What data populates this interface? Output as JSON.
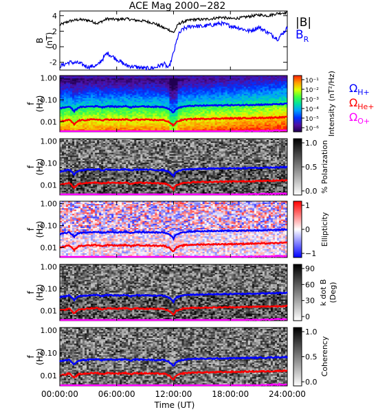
{
  "figure": {
    "title": "ACE Mag 2000−282",
    "xlabel": "Time (UT)",
    "xticks": [
      "00:00:00",
      "06:00:00",
      "12:00:00",
      "18:00:00",
      "24:00:00"
    ]
  },
  "colors": {
    "B_total": "#000000",
    "B_R": "#0000ff",
    "H_plus": "#0000ff",
    "He_plus": "#ff0000",
    "O_plus": "#ff00ff"
  },
  "legend": {
    "top": [
      {
        "label": "|B|",
        "color": "#000000"
      },
      {
        "label": "B",
        "sub": "R",
        "color": "#0000ff"
      }
    ],
    "gyro": [
      {
        "label": "Ω",
        "sub": "H+",
        "color": "#0000ff"
      },
      {
        "label": "Ω",
        "sub": "He+",
        "color": "#ff0000"
      },
      {
        "label": "Ω",
        "sub": "O+",
        "color": "#ff00ff"
      }
    ]
  },
  "freq_axis": {
    "ylabel": "f",
    "yunit": "(Hz)",
    "ticks": [
      "1.00",
      "0.10",
      "0.01"
    ]
  },
  "chart_data": [
    {
      "type": "line",
      "panel": "B-field",
      "ylabel": "B",
      "yunit": "(nT)",
      "ylim": [
        -3,
        4.6
      ],
      "yticks": [
        -2,
        0,
        2,
        4
      ],
      "x": [
        0,
        1,
        2,
        3,
        4,
        5,
        6,
        7,
        8,
        9,
        10,
        11,
        11.5,
        12,
        12.5,
        13,
        14,
        15,
        16,
        17,
        18,
        19,
        20,
        21,
        22,
        23,
        24
      ],
      "series": [
        {
          "name": "|B|",
          "values": [
            2.8,
            3.3,
            3.5,
            3.4,
            3.0,
            3.6,
            3.5,
            3.6,
            3.4,
            3.3,
            3.0,
            2.4,
            2.2,
            1.8,
            2.9,
            3.2,
            3.5,
            3.5,
            3.6,
            3.8,
            3.6,
            3.7,
            3.9,
            4.1,
            4.0,
            4.3,
            4.4
          ]
        },
        {
          "name": "B_R",
          "values": [
            -2.5,
            -2.0,
            -2.1,
            -2.6,
            -2.4,
            -0.8,
            -1.6,
            -2.4,
            -2.6,
            -2.8,
            -2.7,
            -2.2,
            -2.8,
            -0.8,
            1.5,
            2.3,
            2.7,
            2.6,
            2.8,
            3.0,
            2.7,
            2.4,
            2.0,
            2.5,
            1.8,
            1.0,
            2.4
          ]
        }
      ]
    },
    {
      "type": "heatmap",
      "panel": "Intensity",
      "colorbar_label": "Intensity (nT²/Hz)",
      "colorbar_ticks": [
        "10⁻¹",
        "10⁻²",
        "10⁻³",
        "10⁻⁴",
        "10⁻⁵",
        "10⁻⁶"
      ],
      "colormap": "rainbow"
    },
    {
      "type": "heatmap",
      "panel": "Polarization",
      "colorbar_label": "% Polarization",
      "colorbar_ticks": [
        "1.0",
        "0.5",
        "0.0"
      ],
      "colormap": "gray"
    },
    {
      "type": "heatmap",
      "panel": "Ellipticity",
      "colorbar_label": "Ellipticity",
      "colorbar_ticks": [
        "1",
        "0",
        "−1"
      ],
      "colormap": "bwr"
    },
    {
      "type": "heatmap",
      "panel": "k dot B",
      "colorbar_label": "k dot B",
      "colorbar_unit": "(Deg)",
      "colorbar_ticks": [
        "90",
        "60",
        "30",
        "0"
      ],
      "colormap": "gray"
    },
    {
      "type": "heatmap",
      "panel": "Coherency",
      "colorbar_label": "Coherency",
      "colorbar_ticks": [
        "1.0",
        "0.5",
        "0.0"
      ],
      "colormap": "gray"
    },
    {
      "type": "line",
      "panel": "gyrofrequency overlays",
      "x": [
        0,
        0.5,
        1,
        1.5,
        2,
        3,
        4,
        4.5,
        5,
        6,
        7,
        7.5,
        8,
        9,
        10,
        11,
        11.5,
        12,
        12.3,
        13,
        14,
        15,
        16,
        17,
        18,
        19,
        20,
        21,
        22,
        23,
        24
      ],
      "series": [
        {
          "name": "ΩH+",
          "values": [
            0.042,
            0.045,
            0.05,
            0.03,
            0.046,
            0.05,
            0.052,
            0.046,
            0.052,
            0.049,
            0.052,
            0.046,
            0.051,
            0.05,
            0.049,
            0.048,
            0.04,
            0.026,
            0.04,
            0.05,
            0.054,
            0.055,
            0.056,
            0.057,
            0.058,
            0.058,
            0.06,
            0.061,
            0.062,
            0.064,
            0.066
          ]
        },
        {
          "name": "ΩHe+",
          "values": [
            0.0105,
            0.011,
            0.0125,
            0.0075,
            0.0115,
            0.0125,
            0.013,
            0.0115,
            0.013,
            0.0122,
            0.013,
            0.0115,
            0.0128,
            0.0125,
            0.0122,
            0.012,
            0.01,
            0.0065,
            0.01,
            0.0125,
            0.0135,
            0.0137,
            0.014,
            0.0142,
            0.0145,
            0.0145,
            0.015,
            0.0152,
            0.0155,
            0.016,
            0.0165
          ]
        },
        {
          "name": "ΩO+",
          "values": [
            0.0026,
            0.0028,
            0.0031,
            0.0019,
            0.0029,
            0.0031,
            0.0033,
            0.0029,
            0.0033,
            0.0031,
            0.0033,
            0.0029,
            0.0032,
            0.0031,
            0.0031,
            0.003,
            0.0025,
            0.0016,
            0.0025,
            0.0031,
            0.0034,
            0.0034,
            0.0035,
            0.0036,
            0.0036,
            0.0036,
            0.0038,
            0.0038,
            0.0039,
            0.004,
            0.0041
          ]
        }
      ]
    }
  ]
}
